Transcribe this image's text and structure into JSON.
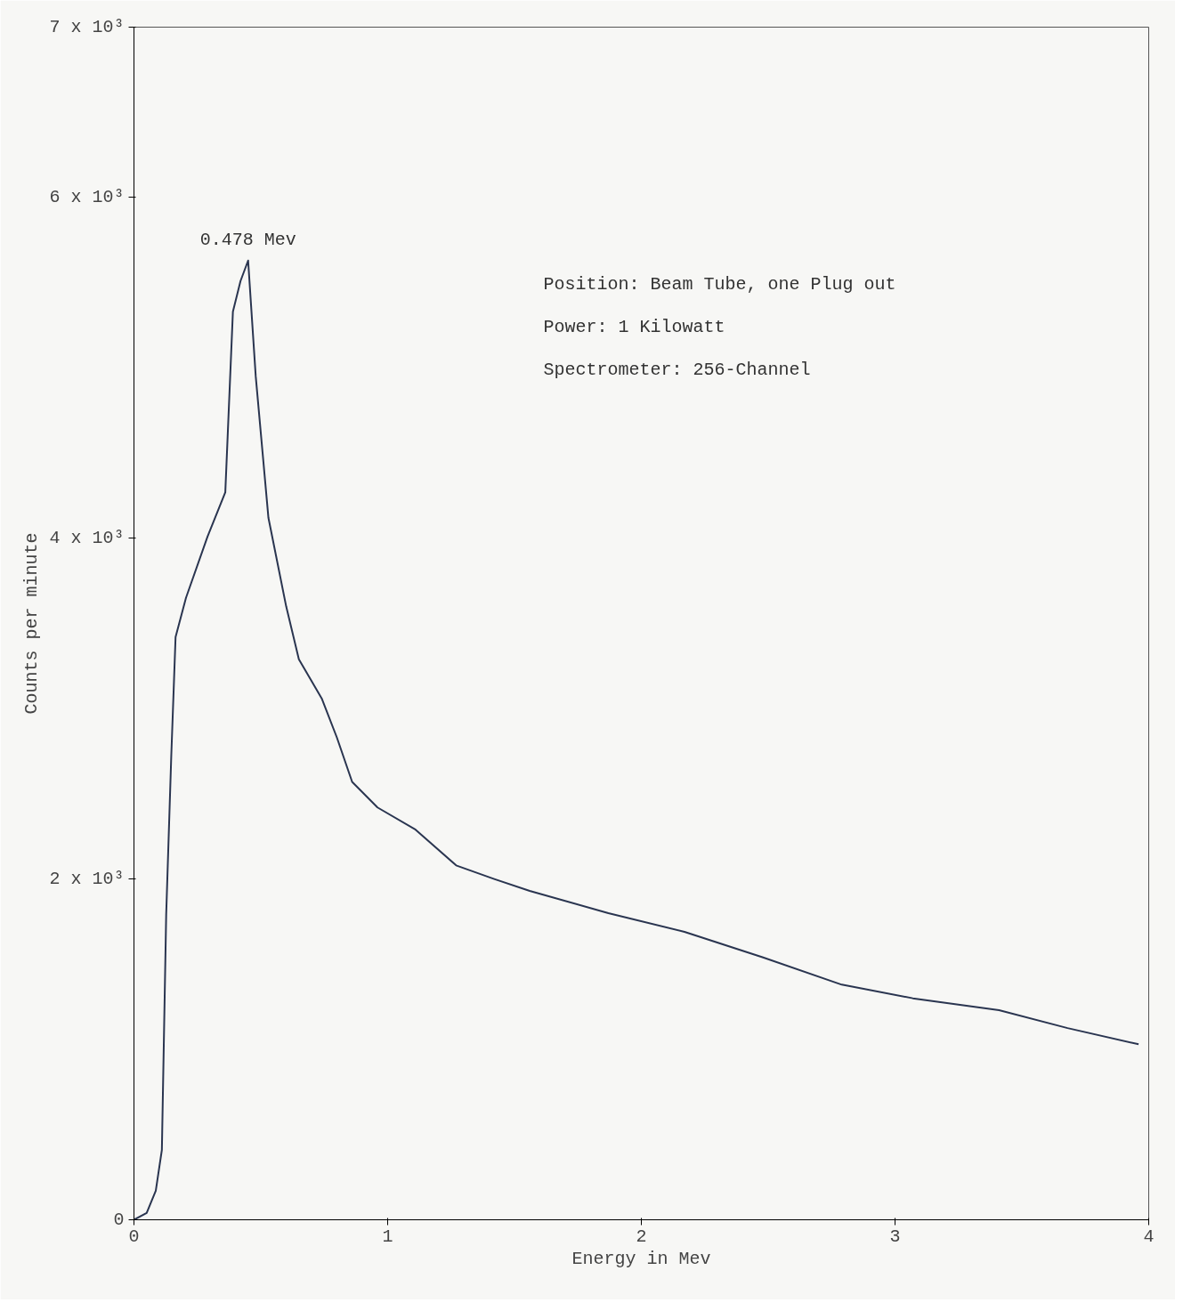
{
  "chart_data": {
    "type": "line",
    "xlabel": "Energy in Mev",
    "ylabel": "Counts per minute",
    "xlim": [
      0,
      4
    ],
    "ylim": [
      0,
      7000
    ],
    "xticks": [
      0,
      1,
      2,
      3,
      4
    ],
    "yticks": [
      0,
      {
        "value": 2000,
        "label": "2 x 10³"
      },
      {
        "value": 4000,
        "label": "4 x 10³"
      },
      {
        "value": 6000,
        "label": "6 x 10³"
      },
      {
        "value": 7000,
        "label": "7 x 10³"
      }
    ],
    "grid": false,
    "marker": "none",
    "line_style": "solid",
    "x": [
      0,
      0.05,
      0.086,
      0.11,
      0.127,
      0.147,
      0.164,
      0.205,
      0.29,
      0.36,
      0.39,
      0.42,
      0.45,
      0.48,
      0.53,
      0.6,
      0.65,
      0.74,
      0.8,
      0.86,
      0.96,
      1.11,
      1.27,
      1.42,
      1.56,
      1.87,
      2.17,
      2.48,
      2.79,
      3.07,
      3.41,
      3.68,
      3.96
    ],
    "series": [
      {
        "color": "#2a3550",
        "values": [
          0,
          40,
          170,
          410,
          1790,
          2720,
          3420,
          3650,
          4010,
          4270,
          5330,
          5510,
          5630,
          4950,
          4120,
          3600,
          3290,
          3060,
          2830,
          2570,
          2420,
          2290,
          2080,
          2000,
          1930,
          1800,
          1690,
          1540,
          1380,
          1300,
          1230,
          1125,
          1030
        ]
      }
    ],
    "annotations": [
      {
        "text": "0.478 Mev",
        "x": 0.45,
        "y": 5630
      },
      "Position: Beam Tube, one Plug out",
      "Power: 1 Kilowatt",
      "Spectrometer: 256-Channel"
    ]
  }
}
